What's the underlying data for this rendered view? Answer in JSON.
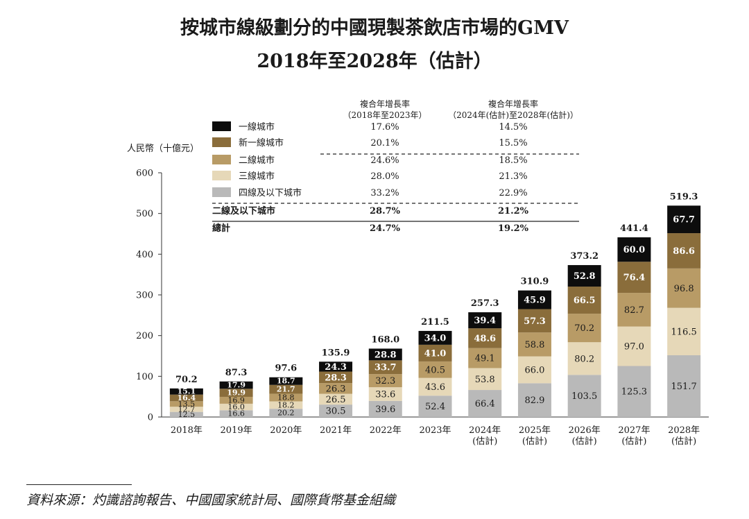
{
  "title_line1": "按城市線級劃分的中國現製茶飲店市場的GMV",
  "title_line2": "2018年至2028年（估計）",
  "source": "資料來源：灼識諮詢報告、中國國家統計局、國際貨幣基金組織",
  "cagr_table": {
    "col1_header": [
      "複合年增長率",
      "（2018年至2023年）"
    ],
    "col2_header": [
      "複合年增長率",
      "（2024年(估計)至2028年(估計)）"
    ],
    "rows": [
      {
        "label": "一線城市",
        "color": "#0d0d0d",
        "v1": "17.6%",
        "v2": "14.5%",
        "bold": false
      },
      {
        "label": "新一線城市",
        "color": "#8a6d3b",
        "v1": "20.1%",
        "v2": "15.5%",
        "bold": false
      },
      {
        "label": "二線城市",
        "color": "#b89b66",
        "v1": "24.6%",
        "v2": "18.5%",
        "bold": false
      },
      {
        "label": "三線城市",
        "color": "#e6d8b8",
        "v1": "28.0%",
        "v2": "21.3%",
        "bold": false
      },
      {
        "label": "四線及以下城市",
        "color": "#b9b9b9",
        "v1": "33.2%",
        "v2": "22.9%",
        "bold": false
      },
      {
        "label": "二線及以下城市",
        "color": "",
        "v1": "28.7%",
        "v2": "21.2%",
        "bold": true
      },
      {
        "label": "總計",
        "color": "",
        "v1": "24.7%",
        "v2": "19.2%",
        "bold": true
      }
    ]
  },
  "chart_data": {
    "type": "bar",
    "stacked": true,
    "ylabel": "人民幣（十億元）",
    "ylim": [
      0,
      600
    ],
    "yticks": [
      0,
      100,
      200,
      300,
      400,
      500,
      600
    ],
    "categories": [
      [
        "2018年"
      ],
      [
        "2019年"
      ],
      [
        "2020年"
      ],
      [
        "2021年"
      ],
      [
        "2022年"
      ],
      [
        "2023年"
      ],
      [
        "2024年",
        "(估計)"
      ],
      [
        "2025年",
        "(估計)"
      ],
      [
        "2026年",
        "(估計)"
      ],
      [
        "2027年",
        "(估計)"
      ],
      [
        "2028年",
        "(估計)"
      ]
    ],
    "totals": [
      70.2,
      87.3,
      97.6,
      135.9,
      168.0,
      211.5,
      257.3,
      310.9,
      373.2,
      441.4,
      519.3
    ],
    "series": [
      {
        "name": "四線及以下城市",
        "color": "#b9b9b9",
        "text": "#1a1a1a",
        "values": [
          12.5,
          16.6,
          20.2,
          30.5,
          39.6,
          52.4,
          66.4,
          82.9,
          103.5,
          125.3,
          151.7
        ]
      },
      {
        "name": "三線城市",
        "color": "#e6d8b8",
        "text": "#1a1a1a",
        "values": [
          12.7,
          16.0,
          18.2,
          26.5,
          33.6,
          43.6,
          53.8,
          66.0,
          80.2,
          97.0,
          116.5
        ]
      },
      {
        "name": "二線城市",
        "color": "#b89b66",
        "text": "#1a1a1a",
        "values": [
          13.5,
          16.9,
          18.8,
          26.3,
          32.3,
          40.5,
          49.1,
          58.8,
          70.2,
          82.7,
          96.8
        ]
      },
      {
        "name": "新一線城市",
        "color": "#8a6d3b",
        "text": "#ffffff",
        "values": [
          16.4,
          19.9,
          21.7,
          28.3,
          33.7,
          41.0,
          48.6,
          57.3,
          66.5,
          76.4,
          86.6
        ]
      },
      {
        "name": "一線城市",
        "color": "#0d0d0d",
        "text": "#ffffff",
        "values": [
          15.1,
          17.9,
          18.7,
          24.3,
          28.8,
          34.0,
          39.4,
          45.9,
          52.8,
          60.0,
          67.7
        ]
      }
    ]
  }
}
